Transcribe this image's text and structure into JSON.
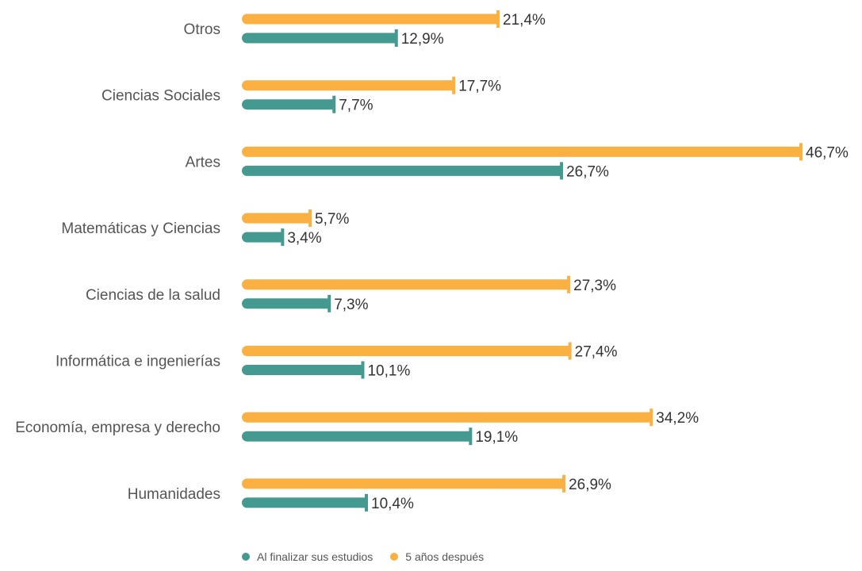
{
  "colors": {
    "series1": "#449a90",
    "series2": "#fbb042",
    "text": "#555555"
  },
  "legend": {
    "series1_label": "Al finalizar sus estudios",
    "series2_label": "5 años después"
  },
  "chart_data": {
    "type": "bar",
    "orientation": "horizontal",
    "categories": [
      "Otros",
      "Ciencias Sociales",
      "Artes",
      "Matemáticas y Ciencias",
      "Ciencias de la salud",
      "Informática e ingenierías",
      "Economía, empresa y derecho",
      "Humanidades"
    ],
    "series": [
      {
        "name": "5 años después",
        "color": "#fbb042",
        "values": [
          21.4,
          17.7,
          46.7,
          5.7,
          27.3,
          27.4,
          34.2,
          26.9
        ],
        "labels": [
          "21,4%",
          "17,7%",
          "46,7%",
          "5,7%",
          "27,3%",
          "27,4%",
          "34,2%",
          "26,9%"
        ]
      },
      {
        "name": "Al finalizar sus estudios",
        "color": "#449a90",
        "values": [
          12.9,
          7.7,
          26.7,
          3.4,
          7.3,
          10.1,
          19.1,
          10.4
        ],
        "labels": [
          "12,9%",
          "7,7%",
          "26,7%",
          "3,4%",
          "7,3%",
          "10,1%",
          "19,1%",
          "10,4%"
        ]
      }
    ],
    "xlim": [
      0,
      46.7
    ],
    "grid": false,
    "legend_position": "bottom"
  }
}
